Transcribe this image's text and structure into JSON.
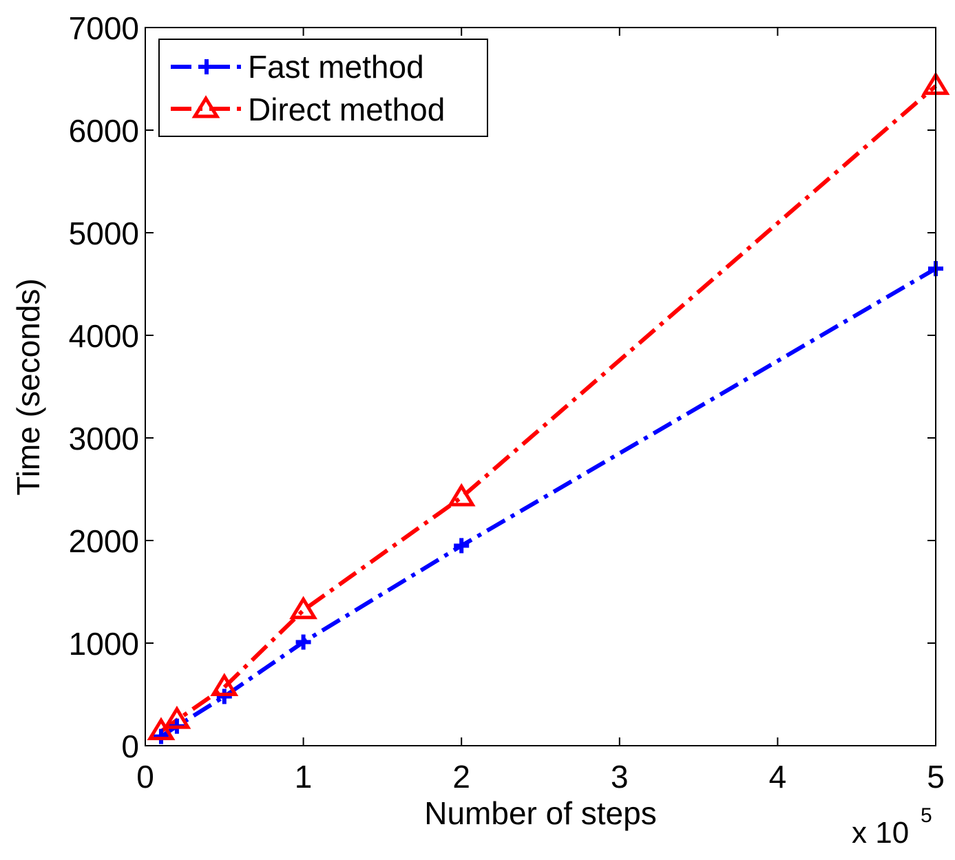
{
  "chart_data": {
    "type": "line",
    "title": "",
    "xlabel": "Number of steps",
    "ylabel": "Time (seconds)",
    "x_multiplier_label": "x 10",
    "x_multiplier_exponent": "5",
    "xlim": [
      0,
      5
    ],
    "ylim": [
      0,
      7000
    ],
    "xticks": [
      0,
      1,
      2,
      3,
      4,
      5
    ],
    "xtick_labels": [
      "0",
      "1",
      "2",
      "3",
      "4",
      "5"
    ],
    "yticks": [
      0,
      1000,
      2000,
      3000,
      4000,
      5000,
      6000,
      7000
    ],
    "ytick_labels": [
      "0",
      "1000",
      "2000",
      "3000",
      "4000",
      "5000",
      "6000",
      "7000"
    ],
    "grid": false,
    "legend_position": "top-left",
    "series": [
      {
        "name": "Fast method",
        "color": "#0000ff",
        "marker": "plus",
        "line_style": "dash-dot",
        "x": [
          0.1,
          0.2,
          0.5,
          1,
          2,
          5
        ],
        "y": [
          90,
          190,
          480,
          1010,
          1950,
          4650
        ]
      },
      {
        "name": "Direct method",
        "color": "#ff0000",
        "marker": "triangle",
        "line_style": "dash-dot",
        "x": [
          0.1,
          0.2,
          0.5,
          1,
          2,
          5
        ],
        "y": [
          140,
          250,
          570,
          1320,
          2420,
          6430
        ]
      }
    ]
  }
}
